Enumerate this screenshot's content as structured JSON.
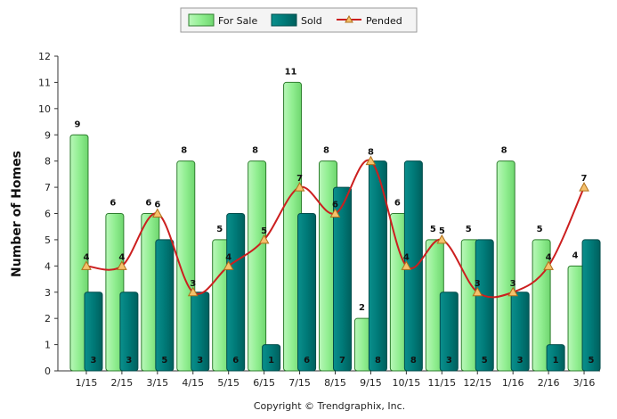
{
  "chart_data": {
    "type": "bar",
    "categories": [
      "1/15",
      "2/15",
      "3/15",
      "4/15",
      "5/15",
      "6/15",
      "7/15",
      "8/15",
      "9/15",
      "10/15",
      "11/15",
      "12/15",
      "1/16",
      "2/16",
      "3/16"
    ],
    "series": [
      {
        "name": "For Sale",
        "kind": "bar",
        "values": [
          9,
          6,
          6,
          8,
          5,
          8,
          11,
          8,
          2,
          6,
          5,
          5,
          8,
          5,
          4
        ]
      },
      {
        "name": "Sold",
        "kind": "bar",
        "values": [
          3,
          3,
          5,
          3,
          6,
          1,
          6,
          7,
          8,
          8,
          3,
          5,
          3,
          1,
          5
        ]
      },
      {
        "name": "Pended",
        "kind": "line",
        "values": [
          4,
          4,
          6,
          3,
          4,
          5,
          7,
          6,
          8,
          4,
          5,
          3,
          3,
          4,
          7
        ]
      }
    ],
    "ylabel": "Number of Homes",
    "xlabel": "",
    "ylim": [
      0,
      12
    ],
    "yticks": [
      "0",
      "1",
      "2",
      "3",
      "4",
      "5",
      "6",
      "7",
      "8",
      "9",
      "10",
      "11",
      "12"
    ],
    "legend": "top",
    "grid": false,
    "colors": {
      "for_sale": "#90ee90",
      "for_sale_stroke": "#2e7d2e",
      "sold": "#007a78",
      "sold_stroke": "#004d4b",
      "pended": "#cc1f1f",
      "marker": "#f5c16c"
    },
    "footer": "Copyright © Trendgraphix, Inc."
  }
}
